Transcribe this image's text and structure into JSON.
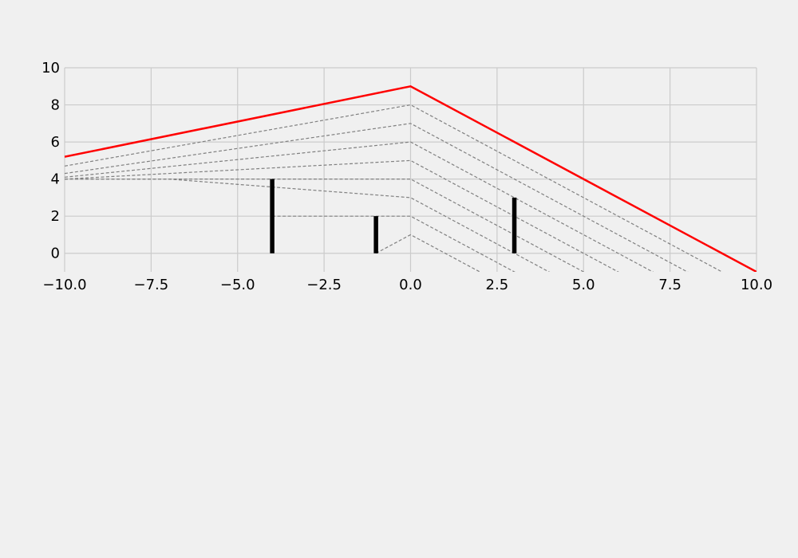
{
  "chart_data": {
    "type": "line",
    "title": "",
    "xlabel": "",
    "ylabel": "",
    "xlim": [
      -10,
      10
    ],
    "ylim": [
      -1,
      10
    ],
    "grid": true,
    "x_ticks": [
      -10,
      -7.5,
      -5,
      -2.5,
      0,
      2.5,
      5,
      7.5,
      10
    ],
    "y_ticks": [
      0,
      2,
      4,
      6,
      8,
      10
    ],
    "x_tick_labels": [
      "−10.0",
      "−7.5",
      "−5.0",
      "−2.5",
      "0.0",
      "2.5",
      "5.0",
      "7.5",
      "10.0"
    ],
    "y_tick_labels": [
      "0",
      "2",
      "4",
      "6",
      "8",
      "10"
    ],
    "colors": {
      "envelope": "#ff0000",
      "components": "#808080",
      "bars": "#000000",
      "grid": "#cbcbcb",
      "background": "#f0f0f0"
    },
    "envelope": {
      "x": [
        -10,
        0,
        10
      ],
      "y": [
        5.2,
        9,
        -1
      ]
    },
    "components": [
      {
        "x": [
          -10,
          0,
          10
        ],
        "y": [
          4.7,
          8,
          -2
        ]
      },
      {
        "x": [
          -10,
          0,
          10
        ],
        "y": [
          4.3,
          7,
          -3
        ]
      },
      {
        "x": [
          -10,
          0,
          10
        ],
        "y": [
          4.1,
          6,
          -4
        ]
      },
      {
        "x": [
          -10,
          0,
          10
        ],
        "y": [
          4.0,
          5,
          -5
        ]
      },
      {
        "x": [
          -10,
          0,
          10
        ],
        "y": [
          4.0,
          4,
          -6
        ]
      },
      {
        "x": [
          -10,
          -7,
          0,
          10
        ],
        "y": [
          4.0,
          4.0,
          3,
          -7
        ]
      },
      {
        "x": [
          -4,
          0,
          10
        ],
        "y": [
          2,
          2,
          -8
        ]
      },
      {
        "x": [
          -1,
          0,
          10
        ],
        "y": [
          0,
          1,
          -9
        ]
      }
    ],
    "bars": [
      {
        "x": -4,
        "y": 4
      },
      {
        "x": -1,
        "y": 2
      },
      {
        "x": 3,
        "y": 3
      }
    ]
  }
}
